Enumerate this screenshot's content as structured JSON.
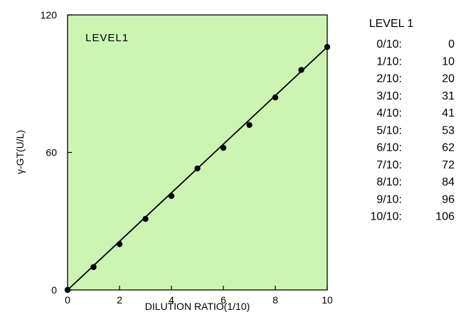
{
  "chart_data": {
    "type": "scatter",
    "inset_label": "LEVEL1",
    "xlabel": "DILUTION RATIO(1/10)",
    "ylabel": "γ-GT(U/L)",
    "xlim": [
      0,
      10
    ],
    "ylim": [
      0,
      120
    ],
    "xticks": [
      "0",
      "2",
      "4",
      "6",
      "8",
      "10"
    ],
    "yticks": [
      "0",
      "60",
      "120"
    ],
    "x": [
      0,
      1,
      2,
      3,
      4,
      5,
      6,
      7,
      8,
      9,
      10
    ],
    "y": [
      0,
      10,
      20,
      31,
      41,
      53,
      62,
      72,
      84,
      96,
      106
    ],
    "fit_line": {
      "x": [
        0,
        10
      ],
      "y": [
        0,
        106
      ]
    },
    "grid": false,
    "legend": "none"
  },
  "table": {
    "title": "LEVEL 1",
    "rows": [
      {
        "label": "0/10:",
        "value": "0"
      },
      {
        "label": "1/10:",
        "value": "10"
      },
      {
        "label": "2/10:",
        "value": "20"
      },
      {
        "label": "3/10:",
        "value": "31"
      },
      {
        "label": "4/10:",
        "value": "41"
      },
      {
        "label": "5/10:",
        "value": "53"
      },
      {
        "label": "6/10:",
        "value": "62"
      },
      {
        "label": "7/10:",
        "value": "72"
      },
      {
        "label": "8/10:",
        "value": "84"
      },
      {
        "label": "9/10:",
        "value": "96"
      },
      {
        "label": "10/10:",
        "value": "106"
      }
    ]
  }
}
